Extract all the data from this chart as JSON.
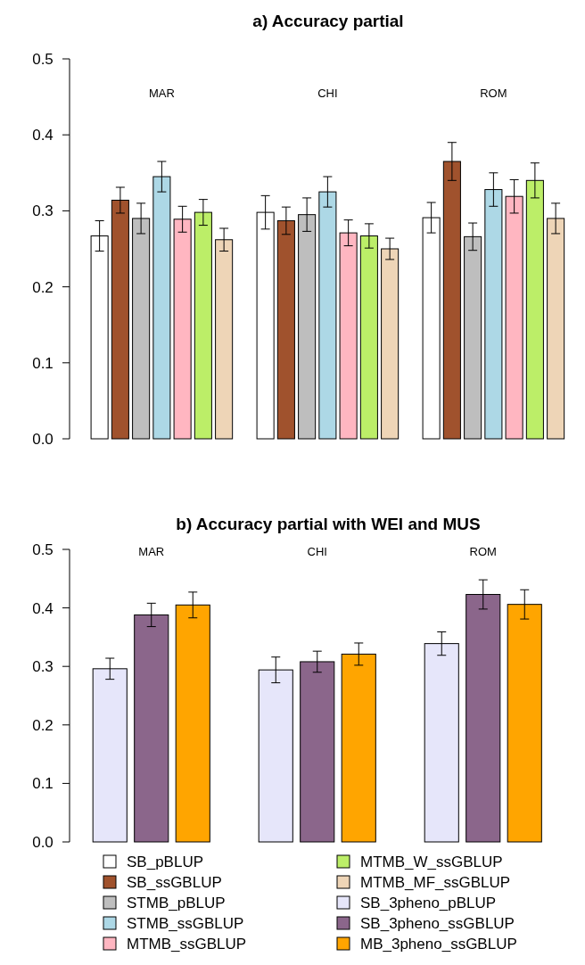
{
  "chart_data": [
    {
      "type": "bar",
      "title": "a) Accuracy partial",
      "categories": [
        "MAR",
        "CHI",
        "ROM"
      ],
      "ylim": [
        0,
        0.5
      ],
      "yticks": [
        {
          "value": 0,
          "label": "0.0"
        },
        0.1,
        0.2,
        0.3,
        0.4,
        0.5
      ],
      "legend": "bottom",
      "series": [
        {
          "name": "SB_pBLUP",
          "color": "#ffffff",
          "values": [
            0.267,
            0.298,
            0.291
          ],
          "errors": [
            0.02,
            0.022,
            0.02
          ]
        },
        {
          "name": "SB_ssGBLUP",
          "color": "#a0522d",
          "values": [
            0.314,
            0.287,
            0.365
          ],
          "errors": [
            0.017,
            0.018,
            0.025
          ]
        },
        {
          "name": "STMB_pBLUP",
          "color": "#bebebe",
          "values": [
            0.29,
            0.295,
            0.266
          ],
          "errors": [
            0.02,
            0.022,
            0.018
          ]
        },
        {
          "name": "STMB_ssGBLUP",
          "color": "#add8e6",
          "values": [
            0.345,
            0.325,
            0.328
          ],
          "errors": [
            0.02,
            0.02,
            0.022
          ]
        },
        {
          "name": "MTMB_ssGBLUP",
          "color": "#ffb6c1",
          "values": [
            0.289,
            0.271,
            0.319
          ],
          "errors": [
            0.017,
            0.017,
            0.022
          ]
        },
        {
          "name": "MTMB_W_ssGBLUP",
          "color": "#bcee68",
          "values": [
            0.298,
            0.267,
            0.34
          ],
          "errors": [
            0.017,
            0.016,
            0.023
          ]
        },
        {
          "name": "MTMB_MF_ssGBLUP",
          "color": "#eed5b7",
          "values": [
            0.262,
            0.25,
            0.29
          ],
          "errors": [
            0.015,
            0.014,
            0.02
          ]
        }
      ]
    },
    {
      "type": "bar",
      "title": "b) Accuracy partial with WEI and MUS",
      "categories": [
        "MAR",
        "CHI",
        "ROM"
      ],
      "ylim": [
        0,
        0.5
      ],
      "yticks": [
        {
          "value": 0,
          "label": "0.0"
        },
        0.1,
        0.2,
        0.3,
        0.4,
        0.5
      ],
      "legend": "bottom",
      "series": [
        {
          "name": "SB_3pheno_pBLUP",
          "color": "#e6e6fa",
          "values": [
            0.296,
            0.294,
            0.339
          ],
          "errors": [
            0.018,
            0.022,
            0.02
          ]
        },
        {
          "name": "SB_3pheno_ssGBLUP",
          "color": "#8b668b",
          "values": [
            0.388,
            0.308,
            0.423
          ],
          "errors": [
            0.02,
            0.018,
            0.025
          ]
        },
        {
          "name": "MB_3pheno_ssGBLUP",
          "color": "#ffa500",
          "values": [
            0.405,
            0.321,
            0.406
          ],
          "errors": [
            0.022,
            0.019,
            0.025
          ]
        }
      ]
    }
  ]
}
